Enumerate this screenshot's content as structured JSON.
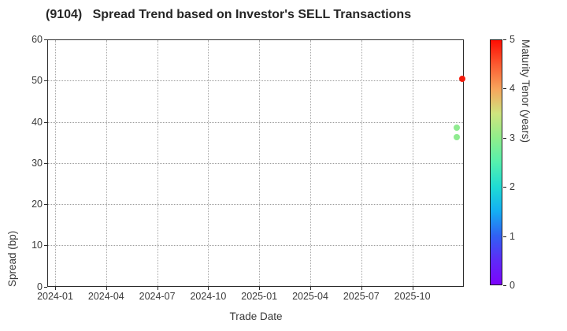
{
  "title": "(9104)   Spread Trend based on Investor's SELL Transactions",
  "chart_data": {
    "type": "scatter",
    "title": "(9104)   Spread Trend based on Investor's SELL Transactions",
    "xlabel": "Trade Date",
    "ylabel": "Spread (bp)",
    "ylim": [
      0,
      60
    ],
    "xlim": [
      "2023-12-17",
      "2025-12-31"
    ],
    "grid": true,
    "x_ticks": [
      "2024-01",
      "2024-04",
      "2024-07",
      "2024-10",
      "2025-01",
      "2025-04",
      "2025-07",
      "2025-10"
    ],
    "y_ticks": [
      0,
      10,
      20,
      30,
      40,
      50,
      60
    ],
    "points": [
      {
        "x": "2025-12-28",
        "y": 50.6,
        "tenor_years": 4.8,
        "color": "#f41b0c"
      },
      {
        "x": "2025-12-18",
        "y": 38.7,
        "tenor_years": 3.0,
        "color": "#8feb90"
      },
      {
        "x": "2025-12-18",
        "y": 36.4,
        "tenor_years": 3.0,
        "color": "#8feb90"
      }
    ],
    "colorbar": {
      "label": "Maturity Tenor (years)",
      "min": 0,
      "max": 5,
      "ticks": [
        0,
        1,
        2,
        3,
        4,
        5
      ],
      "colormap": "rainbow",
      "stops": [
        {
          "value": 0.0,
          "color": "#7c04fb"
        },
        {
          "value": 0.5,
          "color": "#5d2bf7"
        },
        {
          "value": 1.0,
          "color": "#3061f3"
        },
        {
          "value": 1.5,
          "color": "#14aff3"
        },
        {
          "value": 2.0,
          "color": "#1fdcd4"
        },
        {
          "value": 2.5,
          "color": "#55f0ae"
        },
        {
          "value": 3.0,
          "color": "#90ee8b"
        },
        {
          "value": 3.5,
          "color": "#cfe47e"
        },
        {
          "value": 4.0,
          "color": "#f7a55c"
        },
        {
          "value": 4.5,
          "color": "#fb5b31"
        },
        {
          "value": 5.0,
          "color": "#fe0e03"
        }
      ]
    }
  }
}
